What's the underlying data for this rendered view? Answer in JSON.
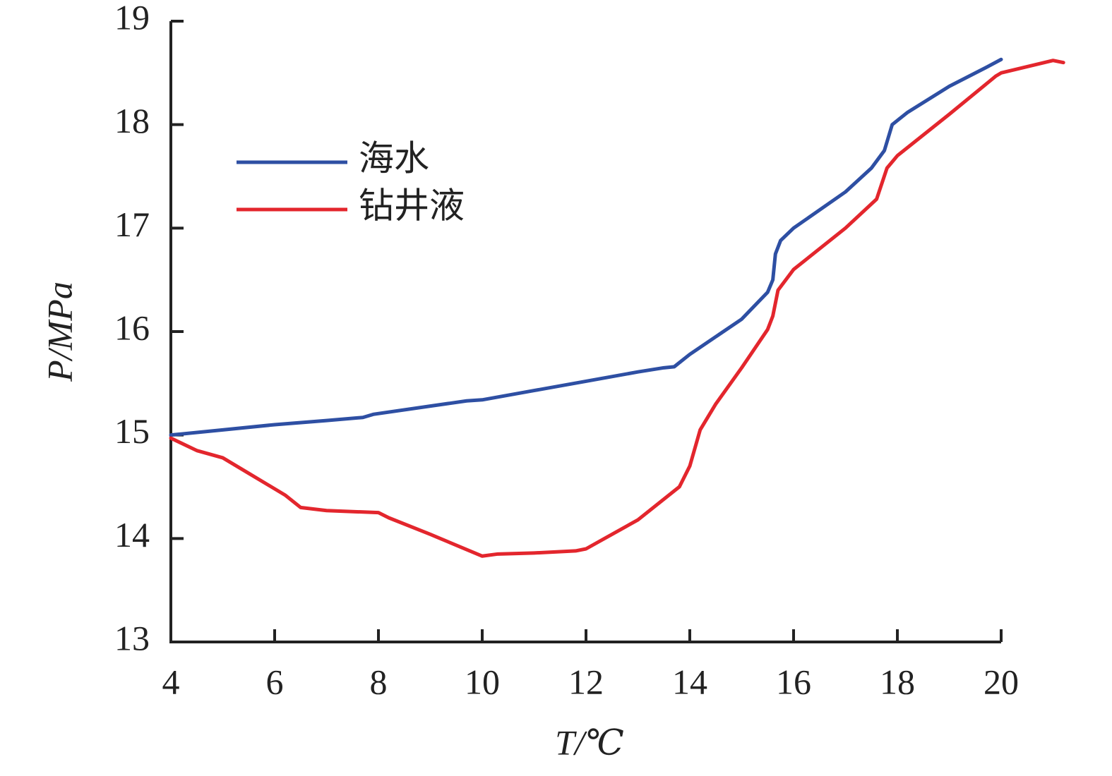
{
  "chart_data": {
    "type": "line",
    "x_label": "T/℃",
    "y_label": "P/MPa",
    "xlim": [
      4,
      20
    ],
    "ylim": [
      13,
      19
    ],
    "xticks": [
      4,
      6,
      8,
      10,
      12,
      14,
      16,
      18,
      20
    ],
    "yticks": [
      13,
      14,
      15,
      16,
      17,
      18,
      19
    ],
    "legend": "upper-left",
    "series": [
      {
        "name": "海水",
        "color": "#2e4fa3",
        "x": [
          4,
          5,
          6,
          7,
          7.7,
          7.9,
          9,
          9.7,
          10,
          11,
          12,
          13,
          13.5,
          13.7,
          14,
          15,
          15.5,
          15.6,
          15.65,
          15.75,
          16,
          17,
          17.5,
          17.75,
          17.9,
          18.2,
          19,
          19.7,
          20
        ],
        "values": [
          15.0,
          15.05,
          15.1,
          15.14,
          15.17,
          15.2,
          15.28,
          15.33,
          15.34,
          15.43,
          15.52,
          15.61,
          15.65,
          15.66,
          15.78,
          16.12,
          16.38,
          16.5,
          16.75,
          16.88,
          17.0,
          17.35,
          17.58,
          17.75,
          18.0,
          18.12,
          18.37,
          18.55,
          18.63
        ]
      },
      {
        "name": "钻井液",
        "color": "#e3262d",
        "x": [
          4,
          4.5,
          5,
          5.5,
          6.2,
          6.5,
          7,
          8,
          8.2,
          9,
          10,
          10.3,
          11,
          11.8,
          12,
          13,
          13.8,
          14,
          14.2,
          14.5,
          15,
          15.5,
          15.6,
          15.7,
          16,
          17,
          17.6,
          17.8,
          18,
          19,
          19.9,
          20,
          21,
          21.2
        ],
        "values": [
          14.97,
          14.85,
          14.78,
          14.63,
          14.42,
          14.3,
          14.27,
          14.25,
          14.2,
          14.04,
          13.83,
          13.85,
          13.86,
          13.88,
          13.9,
          14.18,
          14.5,
          14.7,
          15.05,
          15.3,
          15.65,
          16.02,
          16.15,
          16.4,
          16.6,
          17.0,
          17.28,
          17.58,
          17.7,
          18.1,
          18.47,
          18.5,
          18.62,
          18.6
        ]
      }
    ]
  }
}
